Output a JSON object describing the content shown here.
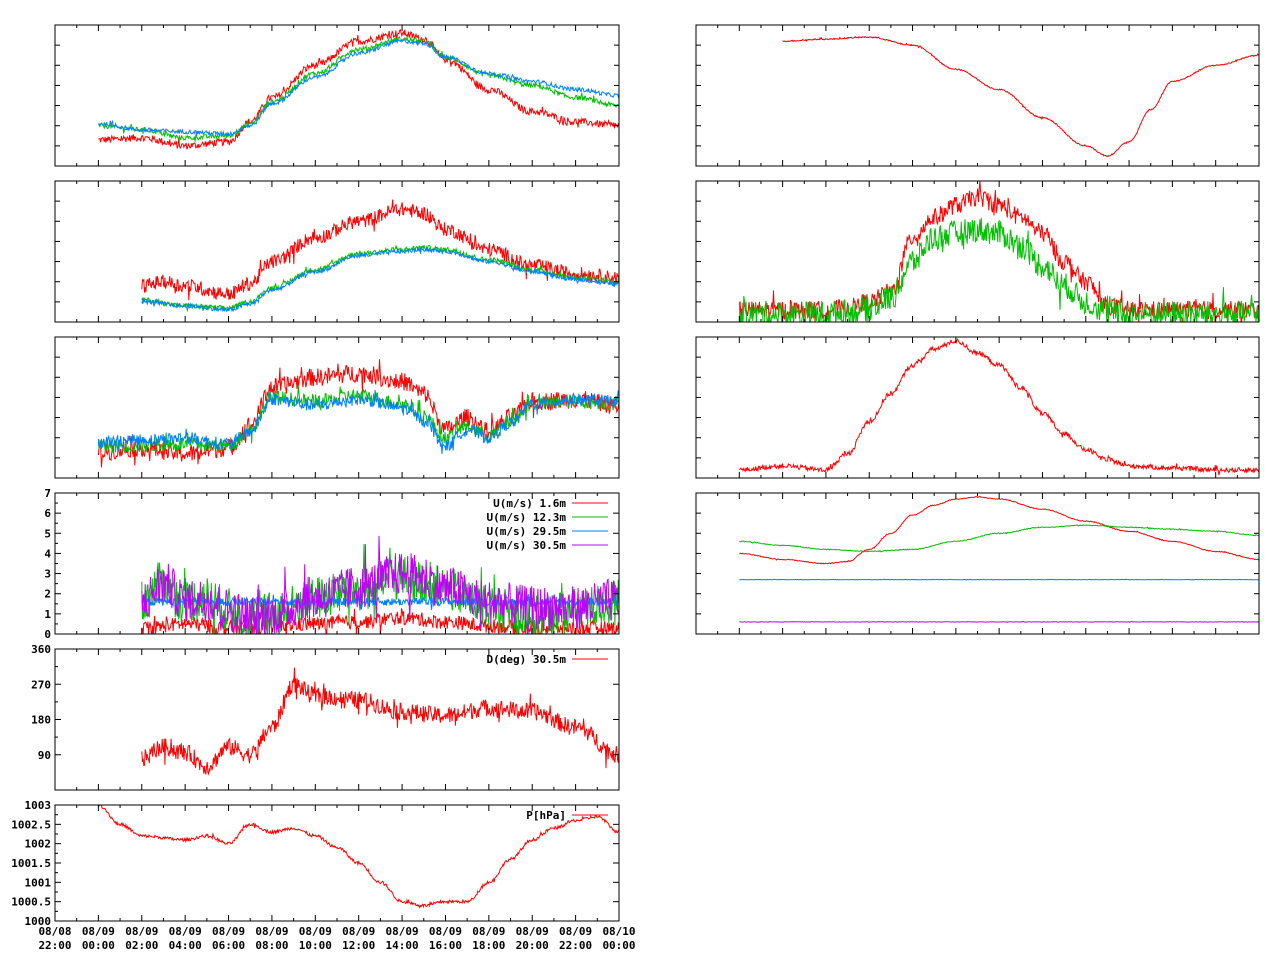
{
  "colors": {
    "red": "#ff0000",
    "green": "#00c000",
    "blue": "#0080ff",
    "purple": "#c000ff"
  },
  "x_axis": {
    "range": [
      0,
      26
    ],
    "ticks": [
      {
        "x": 0,
        "date": "08/08",
        "time": "22:00"
      },
      {
        "x": 2,
        "date": "08/09",
        "time": "00:00"
      },
      {
        "x": 4,
        "date": "08/09",
        "time": "02:00"
      },
      {
        "x": 6,
        "date": "08/09",
        "time": "04:00"
      },
      {
        "x": 8,
        "date": "08/09",
        "time": "06:00"
      },
      {
        "x": 10,
        "date": "08/09",
        "time": "08:00"
      },
      {
        "x": 12,
        "date": "08/09",
        "time": "10:00"
      },
      {
        "x": 14,
        "date": "08/09",
        "time": "12:00"
      },
      {
        "x": 16,
        "date": "08/09",
        "time": "14:00"
      },
      {
        "x": 18,
        "date": "08/09",
        "time": "16:00"
      },
      {
        "x": 20,
        "date": "08/09",
        "time": "18:00"
      },
      {
        "x": 22,
        "date": "08/09",
        "time": "20:00"
      },
      {
        "x": 24,
        "date": "08/09",
        "time": "22:00"
      },
      {
        "x": 26,
        "date": "08/10",
        "time": "00:00"
      }
    ]
  },
  "chart_data": [
    {
      "id": "temp-panel",
      "type": "line",
      "ylim": [
        0,
        7
      ],
      "yticks": [],
      "grid": false,
      "series": [
        {
          "color": "red",
          "noise": 0.18,
          "x": [
            2,
            4,
            6,
            8,
            9,
            10,
            12,
            14,
            16,
            17,
            18,
            20,
            22,
            24,
            26
          ],
          "y": [
            1.3,
            1.4,
            1.0,
            1.2,
            2.2,
            3.4,
            5.0,
            6.2,
            6.6,
            6.3,
            5.3,
            3.8,
            2.7,
            2.2,
            2.0
          ]
        },
        {
          "color": "green",
          "noise": 0.12,
          "x": [
            2,
            4,
            6,
            8,
            9,
            10,
            12,
            14,
            16,
            17,
            18,
            20,
            22,
            24,
            26
          ],
          "y": [
            2.0,
            1.8,
            1.4,
            1.5,
            2.1,
            3.2,
            4.6,
            5.8,
            6.3,
            6.2,
            5.4,
            4.5,
            4.0,
            3.4,
            3.0
          ]
        },
        {
          "color": "blue",
          "noise": 0.1,
          "x": [
            2,
            4,
            6,
            8,
            9,
            10,
            12,
            14,
            16,
            17,
            18,
            20,
            22,
            24,
            26
          ],
          "y": [
            2.1,
            1.8,
            1.7,
            1.6,
            2.0,
            3.1,
            4.4,
            5.6,
            6.2,
            6.1,
            5.4,
            4.6,
            4.2,
            3.8,
            3.5
          ]
        }
      ]
    },
    {
      "id": "humidity-panel",
      "type": "line",
      "ylim": [
        0,
        7
      ],
      "yticks": [],
      "grid": false,
      "series": [
        {
          "color": "red",
          "noise": 0.35,
          "x": [
            4,
            5,
            6,
            8,
            9,
            10,
            12,
            14,
            16,
            17,
            18,
            20,
            22,
            24,
            26
          ],
          "y": [
            1.8,
            2.0,
            1.8,
            1.4,
            1.9,
            3.0,
            4.2,
            5.0,
            5.6,
            5.4,
            4.6,
            3.6,
            2.8,
            2.4,
            2.2
          ]
        },
        {
          "color": "green",
          "noise": 0.12,
          "x": [
            4,
            6,
            8,
            9,
            10,
            12,
            14,
            16,
            17,
            18,
            20,
            22,
            24,
            26
          ],
          "y": [
            1.1,
            0.8,
            0.7,
            1.0,
            1.7,
            2.6,
            3.4,
            3.6,
            3.7,
            3.6,
            3.1,
            2.6,
            2.2,
            2.0
          ]
        },
        {
          "color": "blue",
          "noise": 0.1,
          "x": [
            4,
            6,
            8,
            9,
            10,
            12,
            14,
            16,
            17,
            18,
            20,
            22,
            24,
            26
          ],
          "y": [
            1.0,
            0.8,
            0.6,
            0.9,
            1.6,
            2.5,
            3.3,
            3.5,
            3.6,
            3.5,
            3.0,
            2.5,
            2.1,
            1.9
          ]
        }
      ]
    },
    {
      "id": "wind-temp-panel",
      "type": "line",
      "ylim": [
        0,
        7
      ],
      "yticks": [],
      "grid": false,
      "series": [
        {
          "color": "red",
          "noise": 0.45,
          "x": [
            2,
            4,
            6,
            8,
            9,
            10,
            12,
            14,
            16,
            17,
            18,
            19,
            20,
            21,
            22,
            24,
            26
          ],
          "y": [
            1.3,
            1.5,
            1.2,
            1.5,
            2.6,
            4.5,
            5.0,
            5.2,
            4.8,
            4.2,
            2.4,
            3.0,
            2.3,
            3.0,
            3.8,
            3.9,
            3.6
          ]
        },
        {
          "color": "green",
          "noise": 0.35,
          "x": [
            2,
            4,
            6,
            8,
            9,
            10,
            12,
            14,
            16,
            17,
            18,
            19,
            20,
            21,
            22,
            24,
            26
          ],
          "y": [
            1.6,
            1.6,
            1.7,
            1.6,
            2.4,
            4.0,
            3.8,
            4.1,
            3.7,
            3.1,
            2.0,
            2.6,
            2.1,
            2.8,
            3.7,
            3.8,
            3.7
          ]
        },
        {
          "color": "blue",
          "noise": 0.3,
          "x": [
            2,
            4,
            6,
            8,
            9,
            10,
            12,
            14,
            16,
            17,
            18,
            19,
            20,
            21,
            22,
            24,
            26
          ],
          "y": [
            1.8,
            1.9,
            2.0,
            1.7,
            2.3,
            3.9,
            3.6,
            3.9,
            3.5,
            2.9,
            1.6,
            2.4,
            2.0,
            2.7,
            3.7,
            3.9,
            3.8
          ]
        }
      ]
    },
    {
      "id": "wind-speed-panel",
      "type": "line",
      "ylim": [
        0,
        7
      ],
      "yticks": [
        {
          "v": 0,
          "label": "0"
        },
        {
          "v": 1,
          "label": "1"
        },
        {
          "v": 2,
          "label": "2"
        },
        {
          "v": 3,
          "label": "3"
        },
        {
          "v": 4,
          "label": "4"
        },
        {
          "v": 5,
          "label": "5"
        },
        {
          "v": 6,
          "label": "6"
        },
        {
          "v": 7,
          "label": "7"
        }
      ],
      "legend": [
        "U(m/s)  1.6m",
        "U(m/s) 12.3m",
        "U(m/s) 29.5m",
        "U(m/s) 30.5m"
      ],
      "series": [
        {
          "name": "U(m/s)  1.6m",
          "color": "red",
          "noise": 0.35,
          "x": [
            4,
            6,
            8,
            10,
            12,
            14,
            16,
            18,
            20,
            22,
            24,
            26
          ],
          "y": [
            0.3,
            0.5,
            0.3,
            0.4,
            0.5,
            0.6,
            0.8,
            0.6,
            0.4,
            0.3,
            0.3,
            0.3
          ]
        },
        {
          "name": "U(m/s) 12.3m",
          "color": "green",
          "noise": 1.1,
          "x": [
            4,
            5,
            6,
            7,
            8,
            9,
            10,
            12,
            14,
            16,
            17,
            18,
            20,
            22,
            24,
            26
          ],
          "y": [
            1.6,
            2.6,
            1.6,
            1.8,
            1.2,
            0.8,
            1.0,
            1.8,
            2.2,
            2.8,
            2.6,
            2.2,
            1.4,
            0.8,
            1.2,
            1.6
          ]
        },
        {
          "name": "U(m/s) 29.5m",
          "color": "blue",
          "noise": 0.2,
          "x": [
            4,
            26
          ],
          "y": [
            1.6,
            1.6
          ]
        },
        {
          "name": "U(m/s) 30.5m",
          "color": "purple",
          "noise": 1.1,
          "x": [
            4,
            5,
            6,
            7,
            8,
            9,
            10,
            12,
            14,
            16,
            17,
            18,
            20,
            22,
            24,
            26
          ],
          "y": [
            1.6,
            2.5,
            1.7,
            1.7,
            1.2,
            0.8,
            1.0,
            1.8,
            2.3,
            3.0,
            2.8,
            2.3,
            1.6,
            1.3,
            1.3,
            1.7
          ]
        }
      ]
    },
    {
      "id": "wind-direction-panel",
      "type": "line",
      "ylim": [
        0,
        360
      ],
      "yticks": [
        {
          "v": 90,
          "label": "90"
        },
        {
          "v": 180,
          "label": "180"
        },
        {
          "v": 270,
          "label": "270"
        },
        {
          "v": 360,
          "label": "360"
        }
      ],
      "legend": [
        "D(deg)  30.5m"
      ],
      "series": [
        {
          "name": "D(deg)  30.5m",
          "color": "red",
          "noise": 22,
          "x": [
            4,
            5,
            6,
            7,
            8,
            9,
            10,
            11,
            12,
            14,
            16,
            18,
            20,
            22,
            24,
            26
          ],
          "y": [
            80,
            110,
            95,
            60,
            110,
            90,
            160,
            270,
            240,
            230,
            200,
            190,
            210,
            200,
            160,
            90
          ]
        }
      ]
    },
    {
      "id": "pressure-panel",
      "type": "line",
      "ylim": [
        1000,
        1003
      ],
      "yticks": [
        {
          "v": 1000,
          "label": "1000"
        },
        {
          "v": 1000.5,
          "label": "1000.5"
        },
        {
          "v": 1001,
          "label": "1001"
        },
        {
          "v": 1001.5,
          "label": "1001.5"
        },
        {
          "v": 1002,
          "label": "1002"
        },
        {
          "v": 1002.5,
          "label": "1002.5"
        },
        {
          "v": 1003,
          "label": "1003"
        }
      ],
      "legend": [
        "P[hPa]"
      ],
      "series": [
        {
          "name": "P[hPa]",
          "color": "red",
          "noise": 0.04,
          "x": [
            2,
            3,
            4,
            6,
            7,
            8,
            9,
            10,
            11,
            12,
            13,
            14,
            15,
            16,
            17,
            18,
            19,
            20,
            21,
            22,
            23,
            24,
            25,
            26
          ],
          "y": [
            1003,
            1002.5,
            1002.2,
            1002.1,
            1002.2,
            1002,
            1002.5,
            1002.3,
            1002.4,
            1002.2,
            1001.9,
            1001.5,
            1001.0,
            1000.5,
            1000.4,
            1000.5,
            1000.5,
            1001.0,
            1001.6,
            1002.1,
            1002.4,
            1002.6,
            1002.7,
            1002.3
          ]
        }
      ]
    },
    {
      "id": "right-panel-1",
      "type": "line",
      "ylim": [
        0,
        7
      ],
      "yticks": [],
      "grid": false,
      "series": [
        {
          "color": "red",
          "noise": 0.03,
          "x": [
            4,
            6,
            8,
            10,
            12,
            14,
            16,
            18,
            19,
            20,
            21,
            22,
            24,
            26
          ],
          "y": [
            6.2,
            6.3,
            6.4,
            6.0,
            4.8,
            3.8,
            2.4,
            1.0,
            0.5,
            1.2,
            2.8,
            4.2,
            5.0,
            5.5
          ]
        }
      ]
    },
    {
      "id": "right-panel-2",
      "type": "line",
      "ylim": [
        0,
        7
      ],
      "yticks": [],
      "grid": false,
      "series": [
        {
          "color": "red",
          "noise": 0.45,
          "x": [
            2,
            4,
            6,
            7,
            8,
            9,
            10,
            11,
            12,
            13,
            14,
            15,
            16,
            17,
            18,
            19,
            20,
            22,
            24,
            26
          ],
          "y": [
            0.6,
            0.6,
            0.6,
            0.7,
            1.0,
            1.5,
            4.2,
            5.2,
            5.8,
            6.2,
            5.8,
            5.2,
            4.4,
            3.0,
            2.0,
            0.8,
            0.6,
            0.6,
            0.6,
            0.6
          ]
        },
        {
          "color": "green",
          "noise": 0.65,
          "x": [
            2,
            4,
            6,
            7,
            8,
            9,
            10,
            11,
            12,
            13,
            14,
            15,
            16,
            17,
            18,
            19,
            20,
            22,
            24,
            26
          ],
          "y": [
            0.4,
            0.4,
            0.4,
            0.5,
            0.7,
            1.2,
            3.0,
            4.2,
            4.4,
            4.6,
            4.4,
            3.8,
            2.8,
            1.8,
            1.0,
            0.5,
            0.4,
            0.4,
            0.4,
            0.4
          ]
        }
      ]
    },
    {
      "id": "right-panel-3",
      "type": "line",
      "ylim": [
        0,
        7
      ],
      "yticks": [],
      "grid": false,
      "series": [
        {
          "color": "red",
          "noise": 0.12,
          "x": [
            2,
            4,
            6,
            7,
            8,
            9,
            10,
            11,
            12,
            13,
            14,
            15,
            16,
            17,
            18,
            19,
            20,
            22,
            24,
            26
          ],
          "y": [
            0.4,
            0.6,
            0.4,
            1.2,
            2.8,
            4.2,
            5.6,
            6.4,
            6.8,
            6.2,
            5.6,
            4.5,
            3.2,
            2.2,
            1.4,
            0.9,
            0.6,
            0.5,
            0.4,
            0.4
          ]
        }
      ]
    },
    {
      "id": "right-panel-4",
      "type": "line",
      "ylim": [
        0,
        7
      ],
      "yticks": [],
      "grid": false,
      "series": [
        {
          "color": "red",
          "noise": 0.02,
          "x": [
            2,
            4,
            6,
            7,
            8,
            9,
            10,
            11,
            12,
            13,
            14,
            16,
            18,
            20,
            22,
            24,
            26
          ],
          "y": [
            4.0,
            3.7,
            3.5,
            3.6,
            4.2,
            5.0,
            5.9,
            6.4,
            6.7,
            6.8,
            6.7,
            6.2,
            5.6,
            5.1,
            4.6,
            4.1,
            3.7
          ]
        },
        {
          "color": "green",
          "noise": 0.02,
          "x": [
            2,
            4,
            6,
            8,
            10,
            12,
            14,
            16,
            18,
            20,
            22,
            24,
            26
          ],
          "y": [
            4.6,
            4.4,
            4.2,
            4.1,
            4.2,
            4.6,
            5.0,
            5.3,
            5.4,
            5.3,
            5.2,
            5.1,
            4.9
          ]
        },
        {
          "color": "blue",
          "noise": 0.01,
          "x": [
            2,
            26
          ],
          "y": [
            2.7,
            2.7
          ]
        },
        {
          "color": "purple",
          "noise": 0.01,
          "x": [
            2,
            26
          ],
          "y": [
            0.6,
            0.6
          ]
        }
      ]
    }
  ]
}
